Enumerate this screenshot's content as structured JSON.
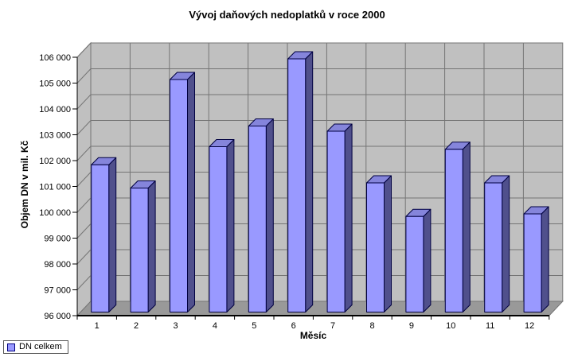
{
  "chart_data": {
    "type": "bar",
    "subtype": "3d-column",
    "title": "Vývoj daňových nedoplatků v roce 2000",
    "xlabel": "Měsíc",
    "ylabel": "Objem DN v mil. Kč",
    "categories": [
      "1",
      "2",
      "3",
      "4",
      "5",
      "6",
      "7",
      "8",
      "9",
      "10",
      "11",
      "12"
    ],
    "series": [
      {
        "name": "DN celkem",
        "values": [
          101700,
          100800,
          105000,
          102400,
          103200,
          105800,
          103000,
          101000,
          99700,
          102300,
          101000,
          99800
        ]
      }
    ],
    "ylim": [
      96000,
      106000
    ],
    "ytick_step": 1000,
    "ytick_labels": [
      "96 000",
      "97 000",
      "98 000",
      "99 000",
      "100 000",
      "101 000",
      "102 000",
      "103 000",
      "104 000",
      "105 000",
      "106 000"
    ],
    "grid": true,
    "legend_position": "bottom-left"
  },
  "colors": {
    "bar_front": "#9999FF",
    "bar_top": "#8585DB",
    "bar_side": "#50508C",
    "bar_outline": "#000040",
    "wall": "#C0C0C0",
    "floor": "#999999",
    "gridline": "#757575",
    "wall_outline": "#757575",
    "axis": "#000000",
    "text": "#000000",
    "background": "#FFFFFF"
  },
  "legend": {
    "label": "DN celkem",
    "swatch_color": "#9999FF"
  }
}
